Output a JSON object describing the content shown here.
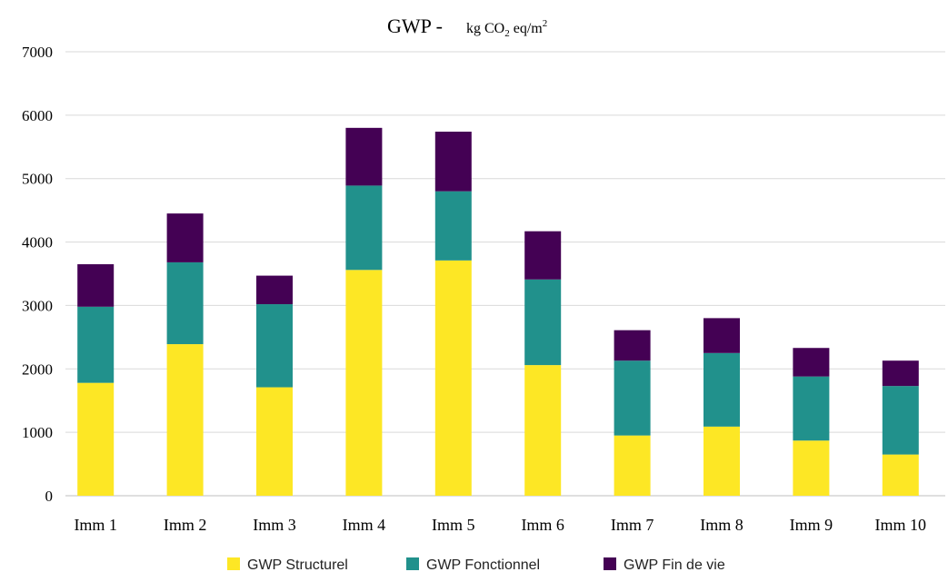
{
  "chart_data": {
    "type": "bar",
    "stacked": true,
    "title_main": "GWP -",
    "title_unit": {
      "kg": "kg CO",
      "sub2": "2",
      "eq": " eq/m",
      "sup2": "2"
    },
    "categories": [
      "Imm 1",
      "Imm 2",
      "Imm 3",
      "Imm 4",
      "Imm 5",
      "Imm 6",
      "Imm 7",
      "Imm 8",
      "Imm 9",
      "Imm 10"
    ],
    "series": [
      {
        "name": "GWP Structurel",
        "color": "#fde725",
        "values": [
          1780,
          2390,
          1710,
          3560,
          3710,
          2060,
          950,
          1090,
          870,
          650
        ]
      },
      {
        "name": "GWP Fonctionnel",
        "color": "#21918c",
        "values": [
          1200,
          1290,
          1310,
          1330,
          1090,
          1350,
          1180,
          1160,
          1010,
          1080
        ]
      },
      {
        "name": "GWP Fin de vie",
        "color": "#440154",
        "values": [
          670,
          770,
          450,
          910,
          940,
          760,
          480,
          550,
          450,
          400
        ]
      }
    ],
    "ylim": [
      0,
      7000
    ],
    "yticks": [
      "0",
      "1000",
      "2000",
      "3000",
      "4000",
      "5000",
      "6000",
      "7000"
    ],
    "grid": true,
    "legend_position": "bottom"
  }
}
